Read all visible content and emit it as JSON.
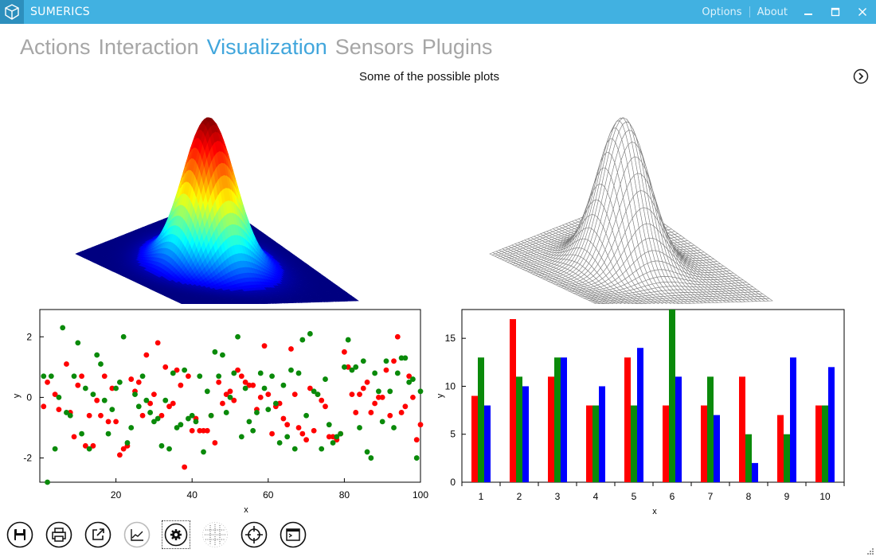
{
  "window": {
    "title": "SUMERICS",
    "options_label": "Options",
    "about_label": "About"
  },
  "nav": {
    "tabs": [
      {
        "label": "Actions",
        "active": false
      },
      {
        "label": "Interaction",
        "active": false
      },
      {
        "label": "Visualization",
        "active": true
      },
      {
        "label": "Sensors",
        "active": false
      },
      {
        "label": "Plugins",
        "active": false
      }
    ]
  },
  "page": {
    "subtitle": "Some of the possible plots"
  },
  "colors": {
    "titlebar": "#41b1e1",
    "active_tab": "#41a6dc",
    "tab": "#a6a6a6"
  },
  "toolbar": {
    "icons": [
      "save-icon",
      "print-icon",
      "export-icon",
      "chart-line-icon",
      "gear-icon",
      "grid-icon",
      "crosshair-icon",
      "console-icon"
    ]
  },
  "chart_data": [
    {
      "type": "surface3d",
      "style": "filled",
      "colormap": "jet",
      "description_function": "gaussian"
    },
    {
      "type": "surface3d",
      "style": "wireframe",
      "line_color": "#808080"
    },
    {
      "type": "scatter",
      "xlabel": "x",
      "ylabel": "y",
      "xlim": [
        0,
        100
      ],
      "ylim": [
        -2.8,
        2.9
      ],
      "xticks": [
        20,
        40,
        60,
        80,
        100
      ],
      "yticks": [
        2,
        0,
        -2
      ],
      "series": [
        {
          "color": "#ff0000",
          "points": [
            [
              1,
              -0.3
            ],
            [
              2,
              0.5
            ],
            [
              4,
              0.1
            ],
            [
              5,
              -0.4
            ],
            [
              7,
              1.1
            ],
            [
              8,
              -0.5
            ],
            [
              9,
              -1.3
            ],
            [
              10,
              0.4
            ],
            [
              11,
              0.7
            ],
            [
              12,
              -1.6
            ],
            [
              13,
              -0.6
            ],
            [
              14,
              -1.6
            ],
            [
              15,
              -0.1
            ],
            [
              16,
              -0.6
            ],
            [
              17,
              0.7
            ],
            [
              18,
              -0.8
            ],
            [
              19,
              0.3
            ],
            [
              20,
              -0.8
            ],
            [
              21,
              -1.9
            ],
            [
              22,
              -1.7
            ],
            [
              23,
              -1.6
            ],
            [
              24,
              0.6
            ],
            [
              25,
              0.2
            ],
            [
              26,
              0.5
            ],
            [
              27,
              -0.6
            ],
            [
              28,
              1.4
            ],
            [
              29,
              -0.2
            ],
            [
              30,
              0.1
            ],
            [
              31,
              1.8
            ],
            [
              32,
              -0.6
            ],
            [
              33,
              1.0
            ],
            [
              34,
              -0.3
            ],
            [
              35,
              -0.2
            ],
            [
              36,
              0.9
            ],
            [
              37,
              0.4
            ],
            [
              38,
              -2.3
            ],
            [
              39,
              0.7
            ],
            [
              40,
              -1.1
            ],
            [
              41,
              -0.7
            ],
            [
              42,
              -1.1
            ],
            [
              43,
              -1.1
            ],
            [
              44,
              -1.1
            ],
            [
              45,
              -0.6
            ],
            [
              46,
              -1.5
            ],
            [
              47,
              0.5
            ],
            [
              48,
              -0.2
            ],
            [
              49,
              0.1
            ],
            [
              50,
              0.2
            ],
            [
              51,
              -0.1
            ],
            [
              52,
              0.9
            ],
            [
              53,
              0.7
            ],
            [
              54,
              0.5
            ],
            [
              55,
              0.4
            ],
            [
              56,
              0.4
            ],
            [
              57,
              -0.4
            ],
            [
              58,
              0.0
            ],
            [
              59,
              1.7
            ],
            [
              60,
              0.1
            ],
            [
              61,
              -1.2
            ],
            [
              62,
              -0.3
            ],
            [
              63,
              -0.2
            ],
            [
              64,
              -0.7
            ],
            [
              65,
              -0.9
            ],
            [
              66,
              1.6
            ],
            [
              67,
              0.1
            ],
            [
              68,
              -1.0
            ],
            [
              69,
              -1.2
            ],
            [
              70,
              -1.4
            ],
            [
              71,
              0.3
            ],
            [
              72,
              -1.1
            ],
            [
              73,
              0.1
            ],
            [
              74,
              -0.1
            ],
            [
              75,
              -0.3
            ],
            [
              76,
              -1.3
            ],
            [
              77,
              -1.3
            ],
            [
              78,
              -1.4
            ],
            [
              79,
              -1.2
            ],
            [
              80,
              1.5
            ],
            [
              81,
              1.0
            ],
            [
              82,
              0.1
            ],
            [
              83,
              -0.5
            ],
            [
              84,
              0.1
            ],
            [
              85,
              0.3
            ],
            [
              86,
              0.5
            ],
            [
              87,
              -0.5
            ],
            [
              88,
              -0.2
            ],
            [
              89,
              0.0
            ],
            [
              90,
              0.0
            ],
            [
              91,
              0.9
            ],
            [
              92,
              -0.6
            ],
            [
              93,
              1.2
            ],
            [
              94,
              2.0
            ],
            [
              95,
              -0.5
            ],
            [
              96,
              -0.3
            ],
            [
              97,
              0.7
            ],
            [
              98,
              0.0
            ],
            [
              99,
              -1.4
            ],
            [
              100,
              -0.9
            ]
          ]
        },
        {
          "color": "#0a8a0a",
          "points": [
            [
              1,
              0.7
            ],
            [
              2,
              -2.8
            ],
            [
              3,
              0.7
            ],
            [
              4,
              -1.7
            ],
            [
              5,
              0.0
            ],
            [
              6,
              2.3
            ],
            [
              7,
              -0.5
            ],
            [
              8,
              -0.6
            ],
            [
              9,
              0.7
            ],
            [
              10,
              1.8
            ],
            [
              11,
              -1.2
            ],
            [
              12,
              0.3
            ],
            [
              13,
              -1.7
            ],
            [
              14,
              0.1
            ],
            [
              15,
              1.4
            ],
            [
              16,
              1.1
            ],
            [
              17,
              -0.1
            ],
            [
              18,
              -1.2
            ],
            [
              19,
              -0.4
            ],
            [
              20,
              0.3
            ],
            [
              21,
              0.5
            ],
            [
              22,
              2.0
            ],
            [
              23,
              -1.5
            ],
            [
              24,
              -1.0
            ],
            [
              25,
              0.1
            ],
            [
              26,
              -0.3
            ],
            [
              27,
              0.7
            ],
            [
              28,
              -0.1
            ],
            [
              29,
              -0.5
            ],
            [
              30,
              -0.8
            ],
            [
              31,
              -0.7
            ],
            [
              32,
              -1.6
            ],
            [
              33,
              -0.1
            ],
            [
              34,
              -1.7
            ],
            [
              35,
              0.8
            ],
            [
              36,
              -1.0
            ],
            [
              37,
              -0.9
            ],
            [
              38,
              0.9
            ],
            [
              39,
              -0.7
            ],
            [
              40,
              -0.6
            ],
            [
              41,
              -0.8
            ],
            [
              42,
              0.7
            ],
            [
              43,
              -1.8
            ],
            [
              44,
              0.2
            ],
            [
              45,
              -0.6
            ],
            [
              46,
              1.5
            ],
            [
              47,
              0.7
            ],
            [
              48,
              1.4
            ],
            [
              49,
              -0.5
            ],
            [
              50,
              0.0
            ],
            [
              51,
              0.8
            ],
            [
              52,
              2.0
            ],
            [
              53,
              -1.3
            ],
            [
              54,
              0.3
            ],
            [
              55,
              -0.8
            ],
            [
              56,
              -1.1
            ],
            [
              57,
              -0.5
            ],
            [
              58,
              0.8
            ],
            [
              59,
              0.3
            ],
            [
              60,
              -0.4
            ],
            [
              61,
              0.7
            ],
            [
              62,
              -0.2
            ],
            [
              63,
              -1.5
            ],
            [
              64,
              0.4
            ],
            [
              65,
              -1.3
            ],
            [
              66,
              0.9
            ],
            [
              67,
              -1.7
            ],
            [
              68,
              0.8
            ],
            [
              69,
              1.9
            ],
            [
              70,
              -0.6
            ],
            [
              71,
              2.1
            ],
            [
              72,
              0.2
            ],
            [
              73,
              0.1
            ],
            [
              74,
              -1.7
            ],
            [
              75,
              0.6
            ],
            [
              76,
              -0.9
            ],
            [
              77,
              -1.5
            ],
            [
              78,
              -1.3
            ],
            [
              79,
              -1.2
            ],
            [
              80,
              1.0
            ],
            [
              81,
              1.9
            ],
            [
              82,
              0.9
            ],
            [
              83,
              1.0
            ],
            [
              84,
              -1.0
            ],
            [
              85,
              1.2
            ],
            [
              86,
              -1.8
            ],
            [
              87,
              -2.0
            ],
            [
              88,
              0.8
            ],
            [
              89,
              0.2
            ],
            [
              90,
              -0.8
            ],
            [
              91,
              1.2
            ],
            [
              92,
              0.2
            ],
            [
              93,
              -1.0
            ],
            [
              94,
              0.8
            ],
            [
              95,
              1.3
            ],
            [
              96,
              1.3
            ],
            [
              97,
              0.5
            ],
            [
              98,
              0.6
            ],
            [
              99,
              -2.0
            ],
            [
              100,
              0.2
            ]
          ]
        }
      ]
    },
    {
      "type": "bar",
      "xlabel": "x",
      "ylabel": "y",
      "ylim": [
        0,
        18
      ],
      "yticks": [
        0,
        5,
        10,
        15
      ],
      "categories": [
        "1",
        "2",
        "3",
        "4",
        "5",
        "6",
        "7",
        "8",
        "9",
        "10"
      ],
      "series": [
        {
          "color": "#ff0000",
          "values": [
            9,
            17,
            11,
            8,
            13,
            8,
            8,
            11,
            7,
            8
          ]
        },
        {
          "color": "#0a8a0a",
          "values": [
            13,
            11,
            13,
            8,
            8,
            18,
            11,
            5,
            5,
            8
          ]
        },
        {
          "color": "#0000ff",
          "values": [
            8,
            10,
            13,
            10,
            14,
            11,
            7,
            2,
            13,
            12
          ]
        }
      ]
    }
  ]
}
